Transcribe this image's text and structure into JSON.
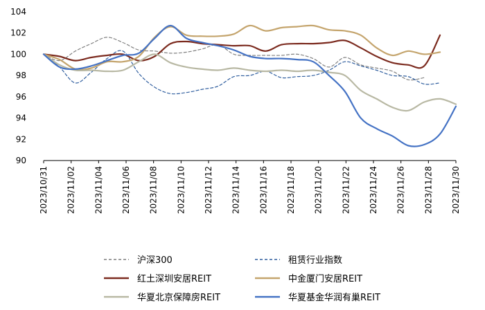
{
  "chart_data": {
    "type": "line",
    "title": "",
    "xlabel": "",
    "ylabel": "",
    "ylim": [
      90,
      104
    ],
    "yticks": [
      90,
      92,
      94,
      96,
      98,
      100,
      102,
      104
    ],
    "x_tick_labels": [
      "2023/10/31",
      "2023/11/02",
      "2023/11/04",
      "2023/11/06",
      "2023/11/08",
      "2023/11/10",
      "2023/11/12",
      "2023/11/14",
      "2023/11/16",
      "2023/11/18",
      "2023/11/20",
      "2023/11/22",
      "2023/11/24",
      "2023/11/26",
      "2023/11/28",
      "2023/11/30"
    ],
    "grid": false,
    "legend_position": "bottom",
    "series": [
      {
        "name": "沪深300",
        "color": "#7f7f7f",
        "style": "dashed",
        "width": 1.2,
        "points": [
          [
            0,
            100
          ],
          [
            1,
            99.4
          ],
          [
            2,
            100.3
          ],
          [
            3,
            101.0
          ],
          [
            4,
            101.6
          ],
          [
            5,
            101.1
          ],
          [
            6,
            100.4
          ],
          [
            7,
            100.3
          ],
          [
            8,
            100.1
          ],
          [
            9,
            100.2
          ],
          [
            10,
            100.5
          ],
          [
            11,
            100.9
          ],
          [
            12,
            100.0
          ],
          [
            13,
            99.9
          ],
          [
            14,
            99.9
          ],
          [
            15,
            99.9
          ],
          [
            16,
            100.0
          ],
          [
            17,
            99.6
          ],
          [
            18,
            98.8
          ],
          [
            19,
            99.7
          ],
          [
            20,
            99.0
          ],
          [
            21,
            98.7
          ],
          [
            22,
            98.4
          ],
          [
            23,
            97.6
          ],
          [
            24,
            97.8
          ]
        ]
      },
      {
        "name": "租赁行业指数",
        "color": "#2e5d9e",
        "style": "dashed",
        "width": 1.2,
        "points": [
          [
            0,
            100
          ],
          [
            1,
            98.8
          ],
          [
            2,
            97.3
          ],
          [
            3,
            98.3
          ],
          [
            4,
            99.6
          ],
          [
            5,
            100.3
          ],
          [
            6,
            98.2
          ],
          [
            7,
            96.9
          ],
          [
            8,
            96.3
          ],
          [
            9,
            96.4
          ],
          [
            10,
            96.7
          ],
          [
            11,
            97.0
          ],
          [
            12,
            97.9
          ],
          [
            13,
            98.0
          ],
          [
            14,
            98.4
          ],
          [
            15,
            97.8
          ],
          [
            16,
            97.9
          ],
          [
            17,
            98.0
          ],
          [
            18,
            98.5
          ],
          [
            19,
            99.3
          ],
          [
            20,
            98.9
          ],
          [
            21,
            98.5
          ],
          [
            22,
            98.0
          ],
          [
            23,
            97.9
          ],
          [
            24,
            97.2
          ],
          [
            25,
            97.3
          ]
        ]
      },
      {
        "name": "红土深圳安居REIT",
        "color": "#7b2a1e",
        "style": "solid",
        "width": 2.2,
        "points": [
          [
            0,
            100
          ],
          [
            1,
            99.8
          ],
          [
            2,
            99.4
          ],
          [
            3,
            99.7
          ],
          [
            4,
            99.9
          ],
          [
            5,
            100.0
          ],
          [
            6,
            99.4
          ],
          [
            7,
            99.8
          ],
          [
            8,
            101.0
          ],
          [
            9,
            101.2
          ],
          [
            10,
            101.0
          ],
          [
            11,
            100.9
          ],
          [
            12,
            100.8
          ],
          [
            13,
            100.8
          ],
          [
            14,
            100.3
          ],
          [
            15,
            100.9
          ],
          [
            16,
            101.0
          ],
          [
            17,
            101.0
          ],
          [
            18,
            101.1
          ],
          [
            19,
            101.3
          ],
          [
            20,
            100.6
          ],
          [
            21,
            99.8
          ],
          [
            22,
            99.2
          ],
          [
            23,
            99.0
          ],
          [
            24,
            98.9
          ],
          [
            25,
            101.8
          ]
        ]
      },
      {
        "name": "中金厦门安居REIT",
        "color": "#c4a46c",
        "style": "solid",
        "width": 2.2,
        "points": [
          [
            0,
            100
          ],
          [
            1,
            99.5
          ],
          [
            2,
            98.6
          ],
          [
            3,
            98.7
          ],
          [
            4,
            99.3
          ],
          [
            5,
            99.3
          ],
          [
            6,
            99.8
          ],
          [
            7,
            101.6
          ],
          [
            8,
            102.6
          ],
          [
            9,
            101.8
          ],
          [
            10,
            101.7
          ],
          [
            11,
            101.7
          ],
          [
            12,
            101.9
          ],
          [
            13,
            102.7
          ],
          [
            14,
            102.2
          ],
          [
            15,
            102.5
          ],
          [
            16,
            102.6
          ],
          [
            17,
            102.7
          ],
          [
            18,
            102.3
          ],
          [
            19,
            102.2
          ],
          [
            20,
            101.8
          ],
          [
            21,
            100.6
          ],
          [
            22,
            99.9
          ],
          [
            23,
            100.3
          ],
          [
            24,
            100.0
          ],
          [
            25,
            100.2
          ]
        ]
      },
      {
        "name": "华夏北京保障房REIT",
        "color": "#b8b8a3",
        "style": "solid",
        "width": 2.2,
        "points": [
          [
            0,
            100
          ],
          [
            1,
            99.0
          ],
          [
            2,
            98.5
          ],
          [
            3,
            98.5
          ],
          [
            4,
            98.4
          ],
          [
            5,
            98.5
          ],
          [
            6,
            99.3
          ],
          [
            7,
            100.0
          ],
          [
            8,
            99.2
          ],
          [
            9,
            98.8
          ],
          [
            10,
            98.6
          ],
          [
            11,
            98.5
          ],
          [
            12,
            98.7
          ],
          [
            13,
            98.5
          ],
          [
            14,
            98.4
          ],
          [
            15,
            98.5
          ],
          [
            16,
            98.4
          ],
          [
            17,
            98.5
          ],
          [
            18,
            98.3
          ],
          [
            19,
            98.0
          ],
          [
            20,
            96.6
          ],
          [
            21,
            95.8
          ],
          [
            22,
            95.0
          ],
          [
            23,
            94.7
          ],
          [
            24,
            95.5
          ],
          [
            25,
            95.8
          ],
          [
            26,
            95.3
          ]
        ]
      },
      {
        "name": "华夏基金华润有巢REIT",
        "color": "#4472c4",
        "style": "solid",
        "width": 2.2,
        "points": [
          [
            0,
            100
          ],
          [
            1,
            98.8
          ],
          [
            2,
            98.6
          ],
          [
            3,
            98.9
          ],
          [
            4,
            99.4
          ],
          [
            5,
            99.9
          ],
          [
            6,
            100.1
          ],
          [
            7,
            101.5
          ],
          [
            8,
            102.7
          ],
          [
            9,
            101.5
          ],
          [
            10,
            101.1
          ],
          [
            11,
            100.8
          ],
          [
            12,
            100.4
          ],
          [
            13,
            99.8
          ],
          [
            14,
            99.6
          ],
          [
            15,
            99.6
          ],
          [
            16,
            99.5
          ],
          [
            17,
            99.3
          ],
          [
            18,
            98.0
          ],
          [
            19,
            96.5
          ],
          [
            20,
            94.0
          ],
          [
            21,
            93.0
          ],
          [
            22,
            92.3
          ],
          [
            23,
            91.4
          ],
          [
            24,
            91.5
          ],
          [
            25,
            92.5
          ],
          [
            26,
            95.1
          ]
        ]
      }
    ]
  }
}
